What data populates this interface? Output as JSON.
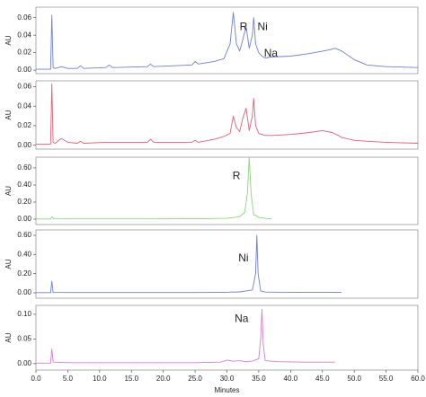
{
  "chart_data": [
    {
      "type": "line",
      "ylabel": "AU",
      "xlim": [
        0,
        60
      ],
      "ylim": [
        -0.004,
        0.072
      ],
      "yticks": [
        {
          "value": 0,
          "label": "0.00"
        },
        {
          "value": 0.02,
          "label": "0.02"
        },
        {
          "value": 0.04,
          "label": "0.04"
        },
        {
          "value": 0.06,
          "label": "0.06"
        }
      ],
      "series": [
        {
          "color": "#6f7fd2",
          "x": [
            0,
            2.3,
            2.5,
            2.7,
            3,
            4,
            5,
            6.5,
            7,
            7.5,
            11,
            11.5,
            12,
            17.5,
            18,
            18.5,
            24.5,
            25,
            25.5,
            28,
            29.5,
            30.5,
            31,
            31.5,
            32,
            32.5,
            33,
            33.5,
            34,
            34.2,
            34.5,
            35,
            35.5,
            36,
            37,
            40,
            43,
            46,
            47,
            48,
            50,
            52,
            55,
            60
          ],
          "values": [
            0.001,
            0.001,
            0.063,
            0.003,
            0.002,
            0.004,
            0.002,
            0.002,
            0.005,
            0.002,
            0.003,
            0.006,
            0.003,
            0.004,
            0.007,
            0.004,
            0.006,
            0.01,
            0.007,
            0.01,
            0.013,
            0.03,
            0.066,
            0.03,
            0.022,
            0.035,
            0.05,
            0.025,
            0.04,
            0.06,
            0.03,
            0.02,
            0.016,
            0.014,
            0.015,
            0.016,
            0.019,
            0.023,
            0.025,
            0.022,
            0.012,
            0.006,
            0.004,
            0.003
          ]
        }
      ],
      "annotations": [
        {
          "text": "R",
          "x": 32.6,
          "y": 0.049
        },
        {
          "text": "Ni",
          "x": 35.6,
          "y": 0.049
        },
        {
          "text": "Na",
          "x": 36.9,
          "y": 0.019
        }
      ]
    },
    {
      "type": "line",
      "ylabel": "AU",
      "xlim": [
        0,
        60
      ],
      "ylim": [
        -0.004,
        0.066
      ],
      "yticks": [
        {
          "value": 0,
          "label": "0.00"
        },
        {
          "value": 0.02,
          "label": "0.02"
        },
        {
          "value": 0.04,
          "label": "0.04"
        },
        {
          "value": 0.06,
          "label": "0.06"
        }
      ],
      "series": [
        {
          "color": "#e06078",
          "x": [
            0,
            2.3,
            2.5,
            2.7,
            3,
            4,
            5,
            6.5,
            7,
            7.5,
            11,
            17.5,
            18,
            18.5,
            24.5,
            25,
            25.5,
            28,
            29.5,
            30.5,
            31,
            31.5,
            32,
            32.5,
            33,
            33.5,
            34,
            34.2,
            34.5,
            35,
            36,
            37,
            40,
            43,
            45,
            46.5,
            47.5,
            48,
            50,
            52,
            55,
            60
          ],
          "values": [
            0.001,
            0.001,
            0.063,
            0.003,
            0.002,
            0.007,
            0.003,
            0.002,
            0.004,
            0.002,
            0.003,
            0.003,
            0.006,
            0.003,
            0.003,
            0.005,
            0.003,
            0.006,
            0.009,
            0.012,
            0.03,
            0.018,
            0.014,
            0.028,
            0.038,
            0.015,
            0.03,
            0.048,
            0.02,
            0.012,
            0.01,
            0.01,
            0.011,
            0.013,
            0.015,
            0.013,
            0.01,
            0.008,
            0.005,
            0.004,
            0.003,
            0.002
          ]
        }
      ]
    },
    {
      "type": "line",
      "ylabel": "AU",
      "xlim": [
        0,
        60
      ],
      "ylim": [
        -0.063,
        0.726
      ],
      "yticks": [
        {
          "value": 0,
          "label": "0.00"
        },
        {
          "value": 0.2,
          "label": "0.20"
        },
        {
          "value": 0.4,
          "label": "0.40"
        },
        {
          "value": 0.6,
          "label": "0.60"
        }
      ],
      "series": [
        {
          "color": "#8ed37a",
          "x": [
            0,
            2.3,
            2.5,
            2.8,
            5,
            15,
            25,
            30,
            32,
            32.8,
            33.2,
            33.5,
            33.8,
            34.2,
            34.6,
            35,
            36,
            37
          ],
          "values": [
            0.002,
            0.002,
            0.03,
            0.004,
            0.003,
            0.003,
            0.004,
            0.01,
            0.03,
            0.08,
            0.3,
            0.72,
            0.3,
            0.05,
            0.04,
            0.02,
            0.01,
            0.004
          ]
        }
      ],
      "annotations": [
        {
          "text": "R",
          "x": 31.5,
          "y": 0.5
        }
      ]
    },
    {
      "type": "line",
      "ylabel": "AU",
      "xlim": [
        0,
        60
      ],
      "ylim": [
        -0.056,
        0.656
      ],
      "yticks": [
        {
          "value": 0,
          "label": "0.00"
        },
        {
          "value": 0.2,
          "label": "0.20"
        },
        {
          "value": 0.4,
          "label": "0.40"
        },
        {
          "value": 0.6,
          "label": "0.60"
        }
      ],
      "series": [
        {
          "color": "#6f7fd2",
          "x": [
            0,
            2.3,
            2.5,
            2.7,
            5,
            15,
            25,
            30,
            32,
            33,
            34,
            34.5,
            34.7,
            34.9,
            35.3,
            36,
            40,
            48
          ],
          "values": [
            0.002,
            0.002,
            0.12,
            0.004,
            0.003,
            0.003,
            0.003,
            0.006,
            0.01,
            0.02,
            0.03,
            0.2,
            0.6,
            0.2,
            0.02,
            0.008,
            0.006,
            0.004
          ]
        }
      ],
      "annotations": [
        {
          "text": "Ni",
          "x": 32.6,
          "y": 0.36
        }
      ]
    },
    {
      "type": "line",
      "ylabel": "AU",
      "xlabel": "Minutes",
      "xlim": [
        0,
        60
      ],
      "ylim": [
        -0.013,
        0.118
      ],
      "xticks": [
        {
          "value": 0,
          "label": "0.0"
        },
        {
          "value": 5,
          "label": "5.0"
        },
        {
          "value": 10,
          "label": "10.0"
        },
        {
          "value": 15,
          "label": "15.0"
        },
        {
          "value": 20,
          "label": "20.0"
        },
        {
          "value": 25,
          "label": "25.0"
        },
        {
          "value": 30,
          "label": "30.0"
        },
        {
          "value": 35,
          "label": "35.0"
        },
        {
          "value": 40,
          "label": "40.0"
        },
        {
          "value": 45,
          "label": "45.0"
        },
        {
          "value": 50,
          "label": "50.0"
        },
        {
          "value": 55,
          "label": "55.0"
        },
        {
          "value": 60,
          "label": "60.0"
        }
      ],
      "yticks": [
        {
          "value": 0,
          "label": "0.00"
        },
        {
          "value": 0.05,
          "label": "0.05"
        },
        {
          "value": 0.1,
          "label": "0.10"
        }
      ],
      "series": [
        {
          "color": "#d27fcf",
          "x": [
            0,
            2.3,
            2.5,
            2.7,
            5,
            15,
            25,
            29,
            30,
            31,
            32,
            33,
            34,
            35,
            35.3,
            35.5,
            35.7,
            36,
            38,
            42,
            47
          ],
          "values": [
            0.001,
            0.001,
            0.03,
            0.003,
            0.002,
            0.002,
            0.002,
            0.003,
            0.007,
            0.005,
            0.006,
            0.004,
            0.005,
            0.01,
            0.05,
            0.11,
            0.04,
            0.006,
            0.004,
            0.003,
            0.003
          ]
        }
      ],
      "annotations": [
        {
          "text": "Na",
          "x": 32.3,
          "y": 0.09
        }
      ]
    }
  ]
}
